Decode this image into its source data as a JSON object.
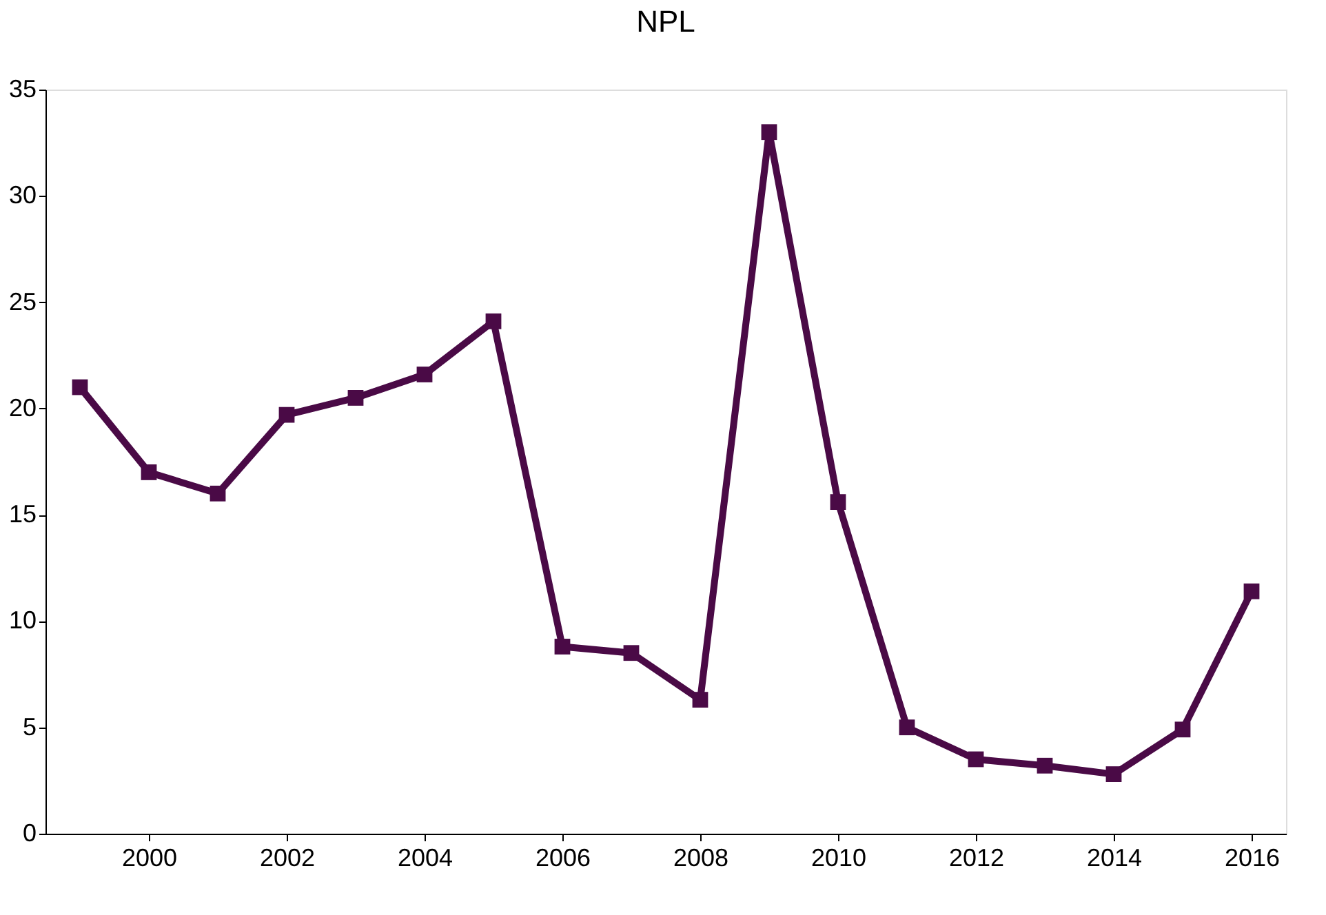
{
  "chart_data": {
    "type": "line",
    "title": "NPL",
    "x": [
      1999,
      2000,
      2001,
      2002,
      2003,
      2004,
      2005,
      2006,
      2007,
      2008,
      2009,
      2010,
      2011,
      2012,
      2013,
      2014,
      2015,
      2016
    ],
    "series": [
      {
        "color": "#4a0a46",
        "values": [
          21.0,
          17.0,
          16.0,
          19.7,
          20.5,
          21.6,
          24.1,
          8.8,
          8.5,
          6.3,
          33.0,
          15.6,
          5.0,
          3.5,
          3.2,
          2.8,
          4.9,
          11.4
        ]
      }
    ],
    "xlim": [
      1998.5,
      2016.5
    ],
    "xticks": [
      2000,
      2002,
      2004,
      2006,
      2008,
      2010,
      2012,
      2014,
      2016
    ],
    "ylim": [
      0,
      35
    ],
    "yticks": [
      0,
      5,
      10,
      15,
      20,
      25,
      30,
      35
    ],
    "grid": false,
    "legend": false,
    "marker": "square",
    "line_style": "solid"
  }
}
